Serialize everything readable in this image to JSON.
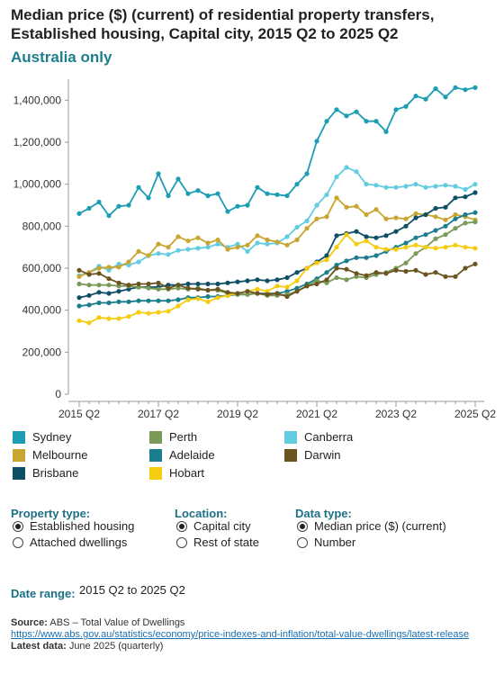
{
  "title": "Median price ($) (current) of residential property transfers, Established housing, Capital city, 2015 Q2 to 2025 Q2",
  "subtitle": "Australia only",
  "chart_data": {
    "type": "line",
    "categories": [
      "2015 Q2",
      "2015 Q3",
      "2015 Q4",
      "2016 Q1",
      "2016 Q2",
      "2016 Q3",
      "2016 Q4",
      "2017 Q1",
      "2017 Q2",
      "2017 Q3",
      "2017 Q4",
      "2018 Q1",
      "2018 Q2",
      "2018 Q3",
      "2018 Q4",
      "2019 Q1",
      "2019 Q2",
      "2019 Q3",
      "2019 Q4",
      "2020 Q1",
      "2020 Q2",
      "2020 Q3",
      "2020 Q4",
      "2021 Q1",
      "2021 Q2",
      "2021 Q3",
      "2021 Q4",
      "2022 Q1",
      "2022 Q2",
      "2022 Q3",
      "2022 Q4",
      "2023 Q1",
      "2023 Q2",
      "2023 Q3",
      "2023 Q4",
      "2024 Q1",
      "2024 Q2",
      "2024 Q3",
      "2024 Q4",
      "2025 Q1",
      "2025 Q2"
    ],
    "tick_labels": [
      "2015 Q2",
      "2017 Q2",
      "2019 Q2",
      "2021 Q2",
      "2023 Q2",
      "2025 Q2"
    ],
    "y_ticks": [
      "0",
      "200,000",
      "400,000",
      "600,000",
      "800,000",
      "1,000,000",
      "1,200,000",
      "1,400,000"
    ],
    "ylim": [
      0,
      1500000
    ],
    "xlabel": "",
    "ylabel": "",
    "grid": false,
    "series": [
      {
        "name": "Sydney",
        "color": "#1b9db3",
        "values": [
          860000,
          885000,
          915000,
          850000,
          895000,
          900000,
          985000,
          935000,
          1050000,
          945000,
          1025000,
          955000,
          970000,
          945000,
          955000,
          870000,
          895000,
          900000,
          985000,
          955000,
          950000,
          945000,
          1000000,
          1050000,
          1205000,
          1300000,
          1355000,
          1325000,
          1345000,
          1300000,
          1300000,
          1250000,
          1355000,
          1370000,
          1420000,
          1405000,
          1455000,
          1415000,
          1460000,
          1450000,
          1460000
        ]
      },
      {
        "name": "Canberra",
        "color": "#62cce0",
        "values": [
          565000,
          580000,
          610000,
          590000,
          620000,
          615000,
          630000,
          660000,
          670000,
          665000,
          685000,
          690000,
          695000,
          700000,
          715000,
          700000,
          715000,
          680000,
          720000,
          715000,
          720000,
          750000,
          795000,
          825000,
          900000,
          950000,
          1035000,
          1080000,
          1060000,
          1000000,
          995000,
          985000,
          985000,
          990000,
          1000000,
          985000,
          990000,
          995000,
          990000,
          975000,
          1000000
        ]
      },
      {
        "name": "Melbourne",
        "color": "#c8a630",
        "values": [
          560000,
          580000,
          600000,
          605000,
          605000,
          630000,
          680000,
          660000,
          715000,
          700000,
          750000,
          730000,
          745000,
          720000,
          735000,
          690000,
          700000,
          710000,
          755000,
          735000,
          725000,
          710000,
          735000,
          790000,
          835000,
          845000,
          935000,
          890000,
          895000,
          855000,
          880000,
          835000,
          840000,
          835000,
          860000,
          855000,
          845000,
          830000,
          855000,
          845000,
          830000
        ]
      },
      {
        "name": "Brisbane",
        "color": "#0e4f66",
        "values": [
          460000,
          470000,
          485000,
          480000,
          490000,
          500000,
          510000,
          510000,
          510000,
          520000,
          520000,
          525000,
          525000,
          525000,
          525000,
          530000,
          535000,
          540000,
          545000,
          540000,
          545000,
          555000,
          580000,
          600000,
          630000,
          660000,
          755000,
          765000,
          775000,
          750000,
          745000,
          755000,
          775000,
          800000,
          840000,
          855000,
          885000,
          890000,
          935000,
          940000,
          960000
        ]
      },
      {
        "name": "Adelaide",
        "color": "#1c7d8c",
        "values": [
          420000,
          425000,
          435000,
          435000,
          440000,
          440000,
          445000,
          445000,
          445000,
          445000,
          450000,
          460000,
          460000,
          465000,
          465000,
          470000,
          475000,
          475000,
          480000,
          480000,
          480000,
          490000,
          505000,
          525000,
          550000,
          580000,
          615000,
          635000,
          650000,
          650000,
          660000,
          680000,
          700000,
          720000,
          745000,
          760000,
          780000,
          800000,
          835000,
          855000,
          865000
        ]
      },
      {
        "name": "Perth",
        "color": "#7a9a58",
        "values": [
          525000,
          520000,
          520000,
          520000,
          515000,
          515000,
          510000,
          505000,
          500000,
          500000,
          505000,
          500000,
          505000,
          495000,
          495000,
          480000,
          475000,
          475000,
          480000,
          470000,
          470000,
          475000,
          490000,
          515000,
          540000,
          530000,
          555000,
          545000,
          560000,
          555000,
          570000,
          580000,
          600000,
          625000,
          670000,
          700000,
          740000,
          760000,
          790000,
          815000,
          820000
        ]
      },
      {
        "name": "Hobart",
        "color": "#f5cc10",
        "values": [
          350000,
          340000,
          365000,
          360000,
          360000,
          370000,
          390000,
          385000,
          390000,
          395000,
          420000,
          450000,
          455000,
          440000,
          460000,
          470000,
          480000,
          490000,
          500000,
          490000,
          515000,
          510000,
          540000,
          600000,
          625000,
          640000,
          700000,
          760000,
          715000,
          730000,
          700000,
          690000,
          690000,
          700000,
          710000,
          700000,
          695000,
          700000,
          710000,
          700000,
          695000
        ]
      },
      {
        "name": "Darwin",
        "color": "#6b5420",
        "values": [
          590000,
          570000,
          575000,
          550000,
          530000,
          520000,
          525000,
          525000,
          530000,
          505000,
          520000,
          505000,
          500000,
          495000,
          500000,
          485000,
          480000,
          490000,
          480000,
          475000,
          480000,
          465000,
          490000,
          515000,
          525000,
          545000,
          600000,
          595000,
          575000,
          565000,
          580000,
          575000,
          590000,
          585000,
          590000,
          570000,
          580000,
          560000,
          560000,
          600000,
          620000
        ]
      }
    ]
  },
  "legend_items": [
    {
      "name": "Sydney",
      "color": "#1b9db3"
    },
    {
      "name": "Perth",
      "color": "#7a9a58"
    },
    {
      "name": "Canberra",
      "color": "#62cce0"
    },
    {
      "name": "Melbourne",
      "color": "#c8a630"
    },
    {
      "name": "Adelaide",
      "color": "#1c7d8c"
    },
    {
      "name": "Darwin",
      "color": "#6b5420"
    },
    {
      "name": "Brisbane",
      "color": "#0e4f66"
    },
    {
      "name": "Hobart",
      "color": "#f5cc10"
    }
  ],
  "controls": {
    "property_type": {
      "label": "Property type:",
      "options": [
        "Established housing",
        "Attached dwellings"
      ],
      "selected": 0
    },
    "location": {
      "label": "Location:",
      "options": [
        "Capital city",
        "Rest of state"
      ],
      "selected": 0
    },
    "data_type": {
      "label": "Data type:",
      "options": [
        "Median price ($) (current)",
        "Number"
      ],
      "selected": 0
    }
  },
  "date_range": {
    "label": "Date range:",
    "value": "2015 Q2 to 2025 Q2"
  },
  "source": {
    "label": "Source:",
    "text": "ABS – Total Value of Dwellings",
    "url": "https://www.abs.gov.au/statistics/economy/price-indexes-and-inflation/total-value-dwellings/latest-release",
    "latest_label": "Latest data:",
    "latest_text": "June 2025 (quarterly)"
  }
}
